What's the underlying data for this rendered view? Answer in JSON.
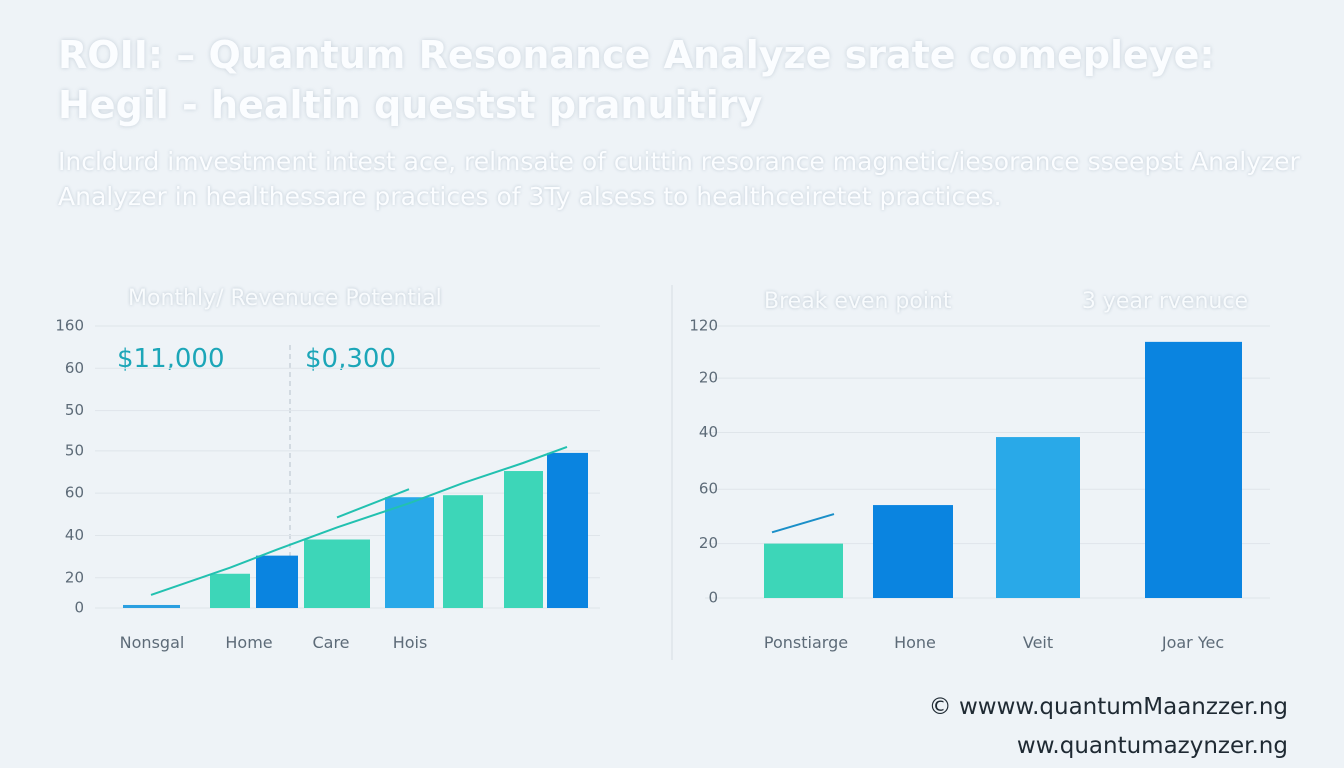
{
  "title": [
    "ROII: – Quantum Resonance Analyze srate comepleye:",
    "Hegil - healtin questst pranuitiry"
  ],
  "subtitle": [
    "Incldurd imvestment intest ace, relmsate of cuittin resorance magnetic/iesorance sseepst Analyzer",
    "Analyzer in healthessare practices of 3Ty alsess to healthceiretet practices."
  ],
  "footer": [
    "© wwww.quantumMaanzzer.ng",
    "ww.quantumazynzer.ng"
  ],
  "chart_data": [
    {
      "type": "bar",
      "title": "Monthly/ Revenuce Potential",
      "annotations": [
        "$11,000",
        "$0,300"
      ],
      "categories": [
        "Nonsgal",
        "Home",
        null,
        "Care",
        "Hois",
        null,
        null,
        null
      ],
      "values": [
        1.5,
        17,
        26,
        34,
        55,
        56,
        68,
        77
      ],
      "colors": [
        "#2a9fe0",
        "#3dd6b8",
        "#0a84e0",
        "#3dd6b8",
        "#29a9e8",
        "#3dd6b8",
        "#3dd6b8",
        "#0a84e0"
      ],
      "line_color": "#22c1b0",
      "lines": [
        {
          "values": [
            6.5,
            20,
            29,
            40,
            52,
            62,
            72,
            80
          ]
        },
        {
          "values": [
            null,
            null,
            null,
            45,
            59,
            null,
            null,
            null
          ]
        }
      ],
      "ylim": [
        0,
        140
      ],
      "yticks": [
        0,
        {
          "value": 15,
          "label": "20"
        },
        {
          "value": 36,
          "label": "40"
        },
        {
          "value": 57,
          "label": "60"
        },
        {
          "value": 78,
          "label": "50"
        },
        {
          "value": 98,
          "label": "50"
        },
        {
          "value": 119,
          "label": "60"
        },
        {
          "value": 140,
          "label": "160"
        }
      ],
      "grid": true
    },
    {
      "type": "bar",
      "titles": [
        "Break even point",
        "3 year rvenuce"
      ],
      "categories": [
        "Ponstiarge",
        "Hone",
        "Veit",
        "Joar Yec"
      ],
      "values": [
        24,
        41,
        71,
        113
      ],
      "colors": [
        "#3dd6b8",
        "#0a84e0",
        "#29a9e8",
        "#0a84e0"
      ],
      "line_color": "#1a8fc8",
      "lines": [
        {
          "values": [
            29,
            37
          ]
        }
      ],
      "ylim": [
        0,
        120
      ],
      "yticks": [
        0,
        {
          "value": 24,
          "label": "20"
        },
        {
          "value": 48,
          "label": "60"
        },
        {
          "value": 73,
          "label": "40"
        },
        {
          "value": 97,
          "label": "20"
        },
        120
      ],
      "grid": true
    }
  ]
}
